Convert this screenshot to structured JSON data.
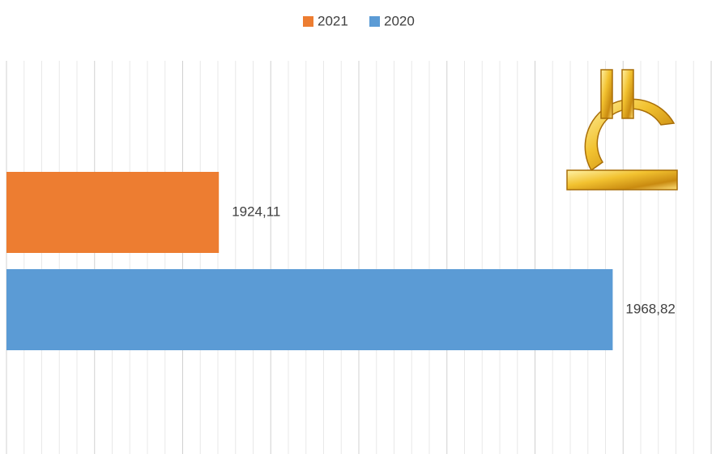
{
  "chart_data": {
    "type": "hbar",
    "categories": [
      null
    ],
    "series": [
      {
        "name": "2021",
        "color": "#ed7d31",
        "values": [
          1924.11
        ],
        "value_labels": [
          "1924,11"
        ]
      },
      {
        "name": "2020",
        "color": "#5b9bd5",
        "values": [
          1968.82
        ],
        "value_labels": [
          "1968,82"
        ]
      }
    ],
    "xlim": [
      1900,
      1980
    ],
    "xticks": [
      1900,
      1910,
      1920,
      1930,
      1940,
      1950,
      1960,
      1970,
      1980
    ],
    "minor_xticks": [
      1902,
      1904,
      1906,
      1908,
      1912,
      1914,
      1916,
      1918,
      1922,
      1924,
      1926,
      1928,
      1932,
      1934,
      1936,
      1938,
      1942,
      1944,
      1946,
      1948,
      1952,
      1954,
      1956,
      1958,
      1962,
      1964,
      1966,
      1968,
      1972,
      1974,
      1976,
      1978
    ],
    "grid": true
  }
}
